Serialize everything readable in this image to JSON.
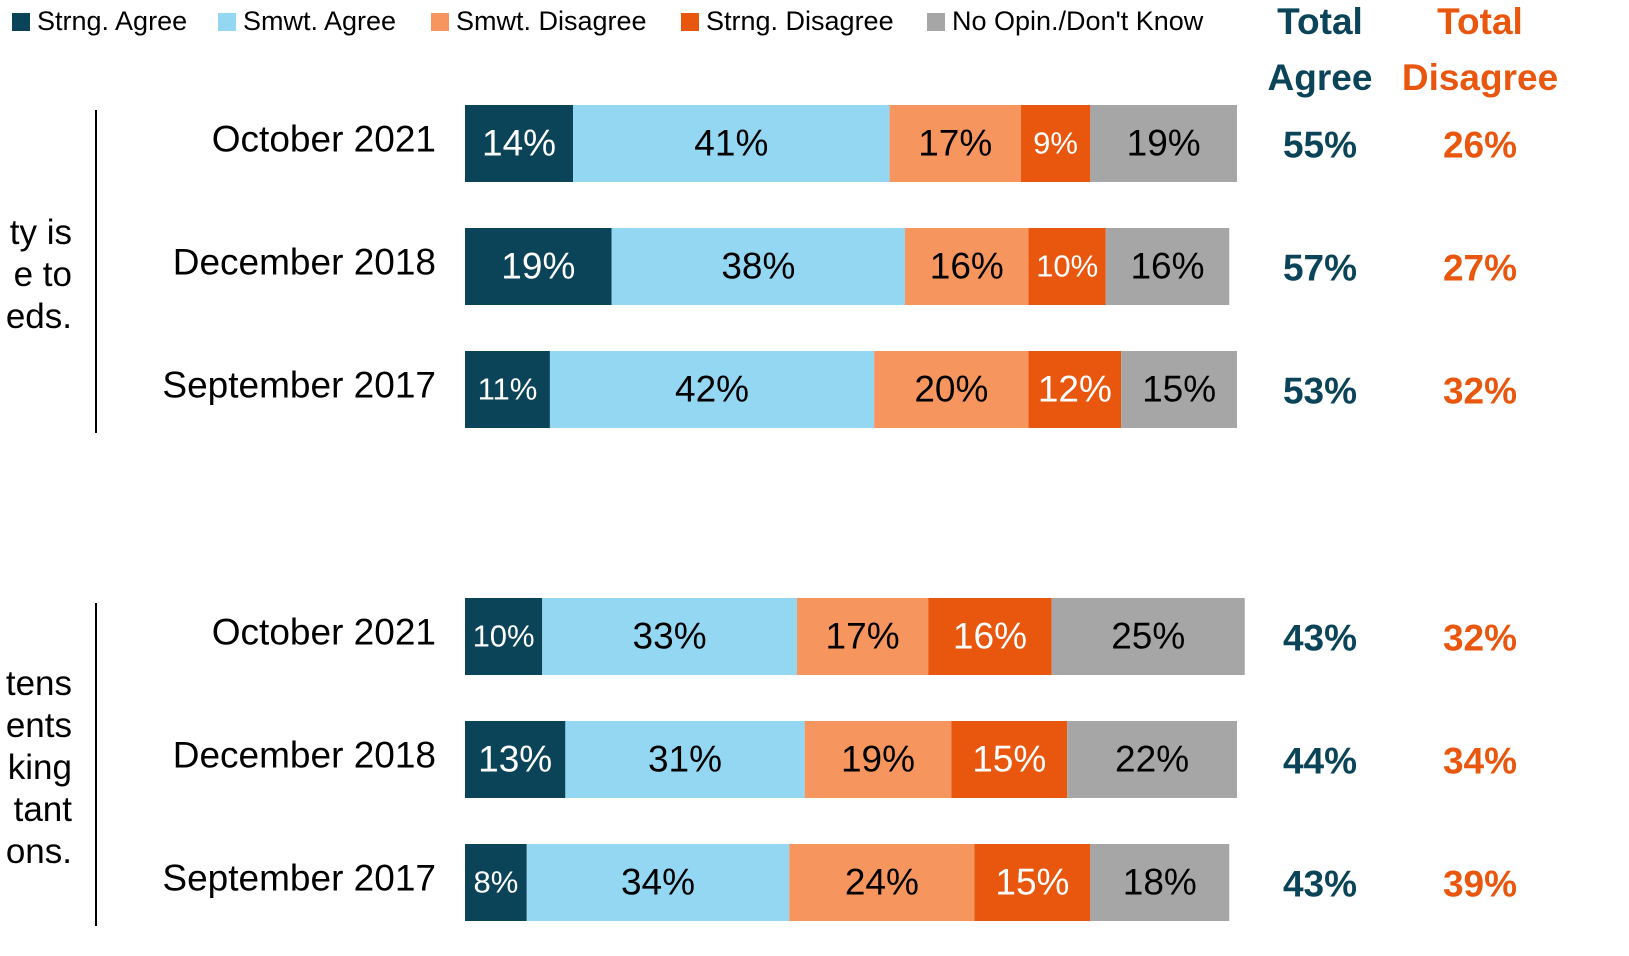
{
  "chart_data": {
    "type": "bar",
    "orientation": "horizontal",
    "stacked": true,
    "xlim": [
      0,
      100
    ],
    "series": [
      {
        "name": "Strng. Agree",
        "color": "#0b4459"
      },
      {
        "name": "Smwt. Agree",
        "color": "#93d7f2"
      },
      {
        "name": "Smwt. Disagree",
        "color": "#f7955f"
      },
      {
        "name": "Strng. Disagree",
        "color": "#e9560e"
      },
      {
        "name": "No Opin./Don't Know",
        "color": "#a6a6a6"
      }
    ],
    "total_agree_header": [
      "Total",
      "Agree"
    ],
    "total_disagree_header": [
      "Total",
      "Disagree"
    ],
    "total_agree_color": "#0b4459",
    "total_disagree_color": "#e9560e",
    "groups": [
      {
        "label_lines": [
          "ty is",
          "e to",
          "eds."
        ],
        "categories": [
          "October 2021",
          "December 2018",
          "September 2017"
        ],
        "values": [
          [
            14,
            19,
            11
          ],
          [
            41,
            38,
            42
          ],
          [
            17,
            16,
            20
          ],
          [
            9,
            10,
            12
          ],
          [
            19,
            16,
            15
          ]
        ],
        "value_labels": [
          [
            "14%",
            "19%",
            "11%"
          ],
          [
            "41%",
            "38%",
            "42%"
          ],
          [
            "17%",
            "16%",
            "20%"
          ],
          [
            "9%",
            "10%",
            "12%"
          ],
          [
            "19%",
            "16%",
            "15%"
          ]
        ],
        "total_agree": [
          55,
          57,
          53
        ],
        "total_agree_labels": [
          "55%",
          "57%",
          "53%"
        ],
        "total_disagree": [
          26,
          27,
          32
        ],
        "total_disagree_labels": [
          "26%",
          "27%",
          "32%"
        ]
      },
      {
        "label_lines": [
          "tens",
          "ents",
          "king",
          "tant",
          "ons."
        ],
        "categories": [
          "October 2021",
          "December 2018",
          "September 2017"
        ],
        "values": [
          [
            10,
            13,
            8
          ],
          [
            33,
            31,
            34
          ],
          [
            17,
            19,
            24
          ],
          [
            16,
            15,
            15
          ],
          [
            25,
            22,
            18
          ]
        ],
        "value_labels": [
          [
            "10%",
            "13%",
            "8%"
          ],
          [
            "33%",
            "31%",
            "34%"
          ],
          [
            "17%",
            "19%",
            "24%"
          ],
          [
            "16%",
            "15%",
            "15%"
          ],
          [
            "25%",
            "22%",
            "18%"
          ]
        ],
        "total_agree": [
          43,
          44,
          43
        ],
        "total_agree_labels": [
          "43%",
          "44%",
          "43%"
        ],
        "total_disagree": [
          32,
          34,
          39
        ],
        "total_disagree_labels": [
          "32%",
          "34%",
          "39%"
        ]
      }
    ]
  }
}
